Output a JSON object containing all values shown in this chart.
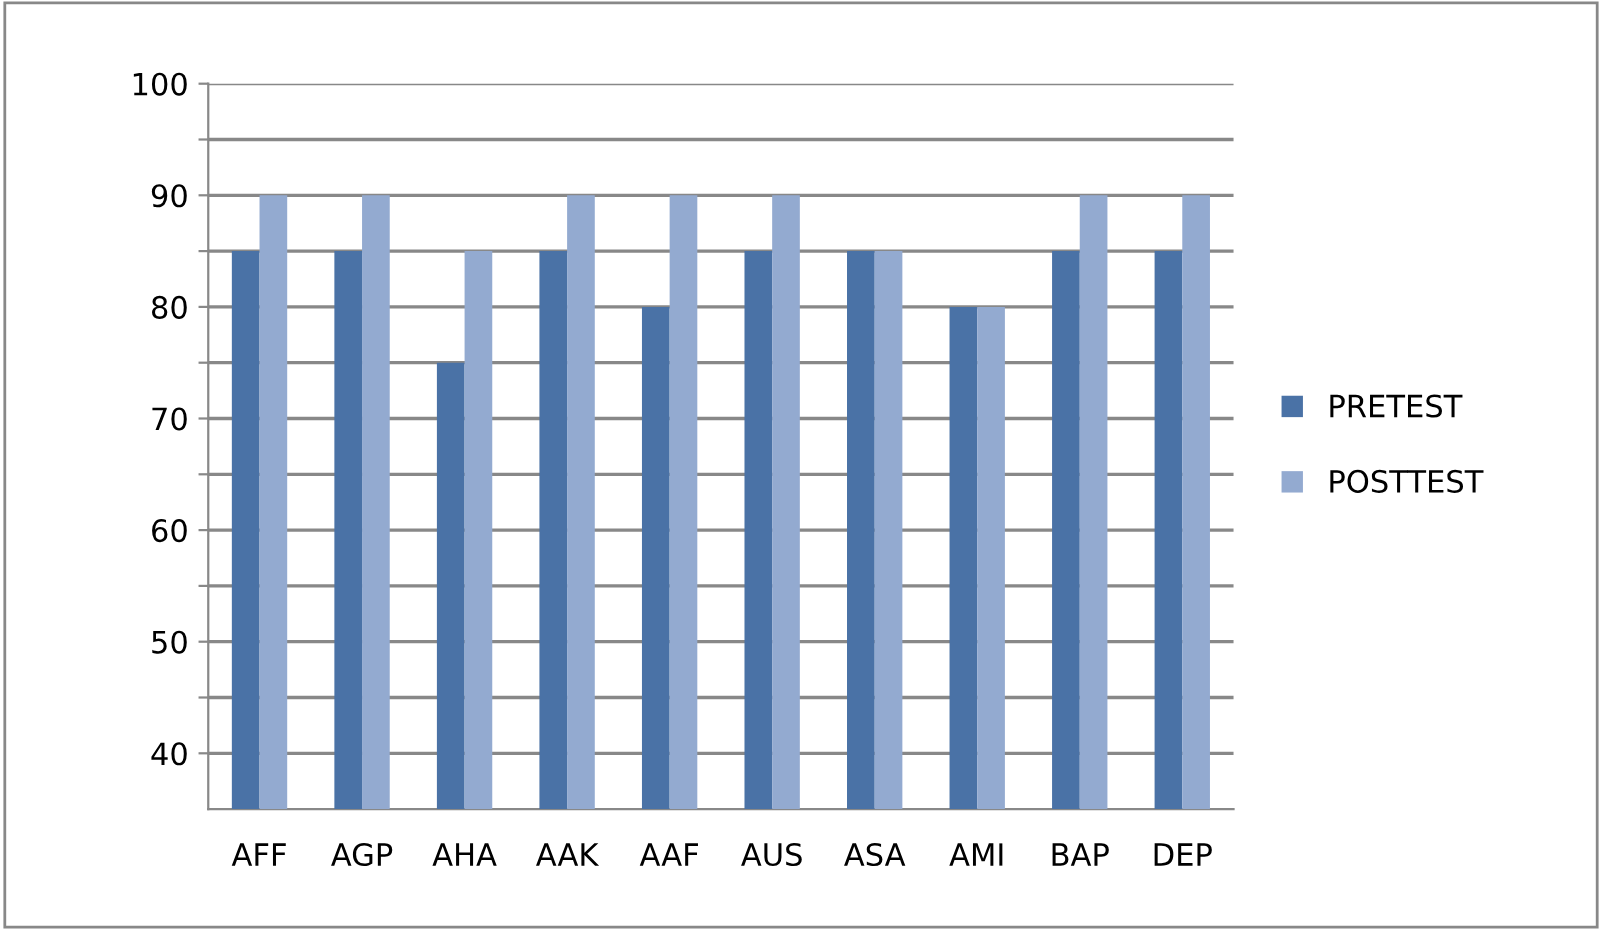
{
  "chart_data": {
    "type": "bar",
    "categories": [
      "AFF",
      "AGP",
      "AHA",
      "AAK",
      "AAF",
      "AUS",
      "ASA",
      "AMI",
      "BAP",
      "DEP"
    ],
    "series": [
      {
        "name": "PRETEST",
        "color": "#4a72a6",
        "values": [
          85,
          85,
          75,
          85,
          80,
          85,
          85,
          80,
          85,
          85
        ]
      },
      {
        "name": "POSTTEST",
        "color": "#93aad0",
        "values": [
          90,
          90,
          85,
          90,
          90,
          90,
          85,
          80,
          90,
          90
        ]
      }
    ],
    "ylim": [
      35,
      100
    ],
    "yticks": [
      40,
      {
        "value": 45,
        "label": null
      },
      50,
      {
        "value": 55,
        "label": null
      },
      60,
      {
        "value": 65,
        "label": null
      },
      70,
      {
        "value": 75,
        "label": null
      },
      80,
      {
        "value": 85,
        "label": null
      },
      90,
      {
        "value": 95,
        "label": null
      },
      100
    ],
    "grid": "y",
    "legend": "right"
  }
}
